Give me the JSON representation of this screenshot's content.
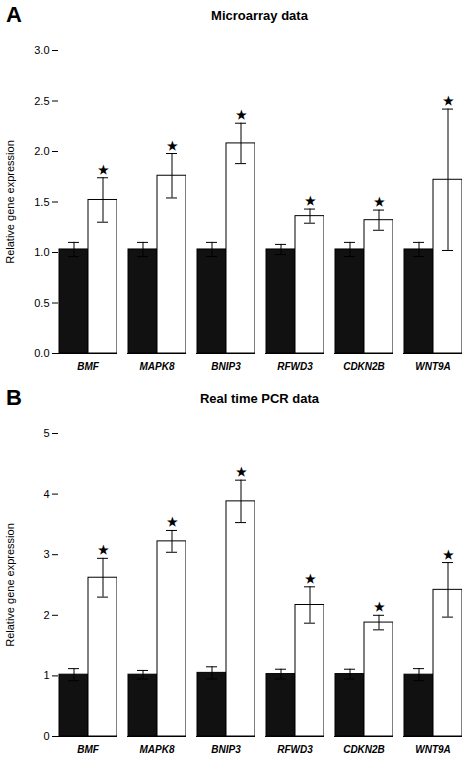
{
  "chart_data": [
    {
      "type": "bar",
      "title": "Microarray data",
      "panel_label": "A",
      "categories": [
        "BMF",
        "MAPK8",
        "BNIP3",
        "RFWD3",
        "CDKN2B",
        "WNT9A"
      ],
      "ylabel": "Relative gene expression",
      "ylim": [
        0.0,
        3.0
      ],
      "yticks": [
        {
          "value": 0,
          "label": "0.0"
        },
        0.5,
        {
          "value": 1,
          "label": "1.0"
        },
        1.5,
        {
          "value": 2,
          "label": "2.0"
        },
        2.5,
        {
          "value": 3,
          "label": "3.0"
        }
      ],
      "series": [
        {
          "color": "#111111",
          "values": [
            1.03,
            1.03,
            1.03,
            1.03,
            1.03,
            1.03
          ],
          "errors": [
            0.07,
            0.07,
            0.07,
            0.05,
            0.07,
            0.07
          ]
        },
        {
          "color": "#ffffff",
          "values": [
            1.52,
            1.76,
            2.08,
            1.36,
            1.32,
            1.72
          ],
          "errors": [
            0.22,
            0.22,
            0.2,
            0.07,
            0.1,
            0.7
          ],
          "annotations": [
            "★",
            "★",
            "★",
            "★",
            "★",
            "★"
          ]
        }
      ]
    },
    {
      "type": "bar",
      "title": "Real time PCR data",
      "panel_label": "B",
      "categories": [
        "BMF",
        "MAPK8",
        "BNIP3",
        "RFWD3",
        "CDKN2B",
        "WNT9A"
      ],
      "ylabel": "Relative gene expression",
      "ylim": [
        0.0,
        5.0
      ],
      "yticks": [
        0,
        1,
        2,
        3,
        4,
        5
      ],
      "series": [
        {
          "color": "#111111",
          "values": [
            1.02,
            1.02,
            1.05,
            1.03,
            1.03,
            1.02
          ],
          "errors": [
            0.1,
            0.07,
            0.1,
            0.08,
            0.08,
            0.1
          ]
        },
        {
          "color": "#ffffff",
          "values": [
            2.62,
            3.22,
            3.88,
            2.17,
            1.88,
            2.42
          ],
          "errors": [
            0.32,
            0.18,
            0.35,
            0.3,
            0.12,
            0.45
          ],
          "annotations": [
            "★",
            "★",
            "★",
            "★",
            "★",
            "★"
          ]
        }
      ]
    }
  ]
}
